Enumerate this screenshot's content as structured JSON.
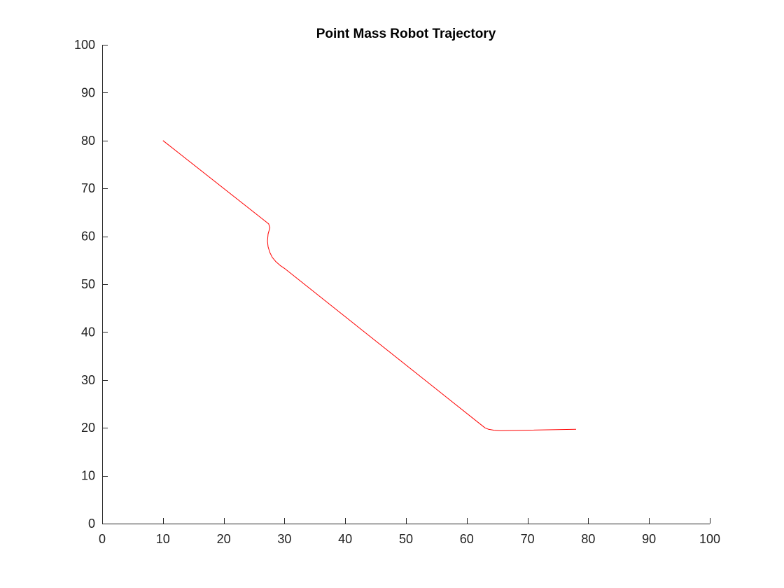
{
  "chart_data": {
    "type": "line",
    "title": "Point Mass Robot Trajectory",
    "xlabel": "",
    "ylabel": "",
    "xlim": [
      0,
      100
    ],
    "ylim": [
      0,
      100
    ],
    "xticks": [
      0,
      10,
      20,
      30,
      40,
      50,
      60,
      70,
      80,
      90,
      100
    ],
    "yticks": [
      0,
      10,
      20,
      30,
      40,
      50,
      60,
      70,
      80,
      90,
      100
    ],
    "grid": false,
    "legend": "none",
    "series": [
      {
        "color": "#ff0000",
        "x": [
          10,
          27.4,
          27.6,
          27.3,
          27.2,
          27.3,
          27.6,
          28.0,
          28.6,
          29.3,
          30.0,
          63.0,
          63.6,
          64.5,
          65.5,
          78.0
        ],
        "y": [
          80,
          62.6,
          61.8,
          60.5,
          59.0,
          57.8,
          56.6,
          55.6,
          54.7,
          53.9,
          53.3,
          20.0,
          19.7,
          19.5,
          19.4,
          19.7
        ]
      }
    ]
  }
}
